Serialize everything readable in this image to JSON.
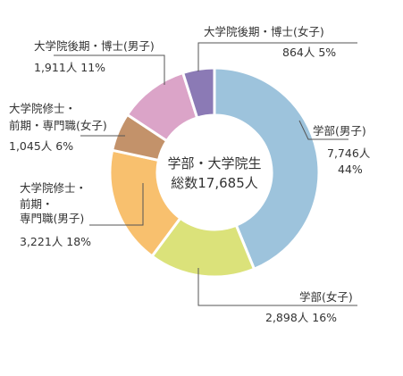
{
  "chart_data": {
    "type": "pie",
    "donut": true,
    "center_text": [
      "学部・大学院生",
      "総数17,685人"
    ],
    "total": 17685,
    "slices": [
      {
        "name": "学部(男子)",
        "value": 7746,
        "value_text": "7,746人",
        "percent_text": "44%",
        "color": "#9dc3dc"
      },
      {
        "name": "学部(女子)",
        "value": 2898,
        "value_text": "2,898人",
        "percent_text": "16%",
        "color": "#dbe27a"
      },
      {
        "name": "大学院修士・前期・専門職(男子)",
        "value": 3221,
        "value_text": "3,221人",
        "percent_text": "18%",
        "color": "#f8c06e"
      },
      {
        "name": "大学院修士・前期・専門職(女子)",
        "value": 1045,
        "value_text": "1,045人",
        "percent_text": "6%",
        "color": "#c3926a"
      },
      {
        "name": "大学院後期・博士(男子)",
        "value": 1911,
        "value_text": "1,911人",
        "percent_text": "11%",
        "color": "#dba4c8"
      },
      {
        "name": "大学院後期・博士(女子)",
        "value": 864,
        "value_text": "864人",
        "percent_text": "5%",
        "color": "#8b7ab5"
      }
    ],
    "labels": {
      "s0_name": "学部(男子)",
      "s0_value": "7,746人",
      "s0_pct": "44%",
      "s1_line": "学部(女子)",
      "s1_value": "2,898人  16%",
      "s2_l1": "大学院修士・",
      "s2_l2": "前期・",
      "s2_l3": "専門職(男子)",
      "s2_value": "3,221人  18%",
      "s3_l1": "大学院修士・",
      "s3_l2": "前期・専門職(女子)",
      "s3_value": "1,045人  6%",
      "s4_name": "大学院後期・博士(男子)",
      "s4_value": "1,911人  11%",
      "s5_name": "大学院後期・博士(女子)",
      "s5_value": "864人  5%"
    }
  }
}
